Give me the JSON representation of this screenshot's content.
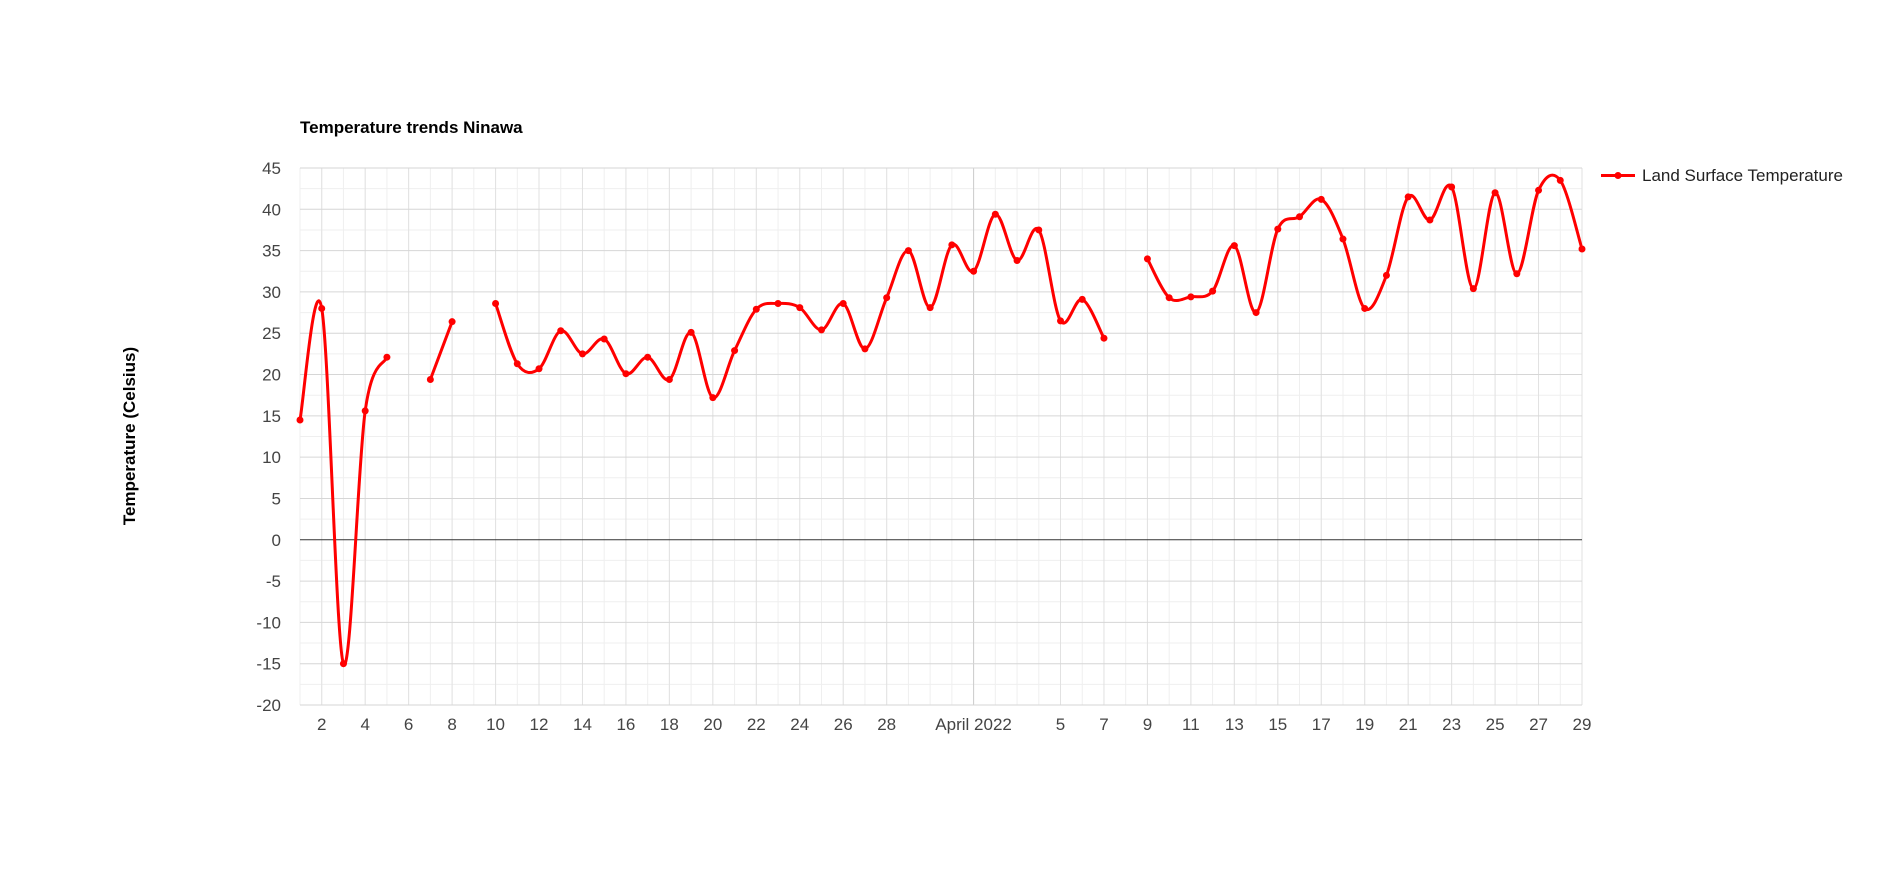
{
  "chart_data": {
    "type": "line",
    "title": "Temperature trends Ninawa",
    "xlabel": "",
    "ylabel": "Temperature (Celsius)",
    "ylim": [
      -20,
      45
    ],
    "yticks": [
      45,
      40,
      35,
      30,
      25,
      20,
      15,
      10,
      5,
      0,
      -5,
      -10,
      -15,
      -20
    ],
    "xlim": [
      "2022-03-01",
      "2022-04-29"
    ],
    "x_tick_labels": [
      {
        "date": "2022-03-02",
        "label": "2"
      },
      {
        "date": "2022-03-04",
        "label": "4"
      },
      {
        "date": "2022-03-06",
        "label": "6"
      },
      {
        "date": "2022-03-08",
        "label": "8"
      },
      {
        "date": "2022-03-10",
        "label": "10"
      },
      {
        "date": "2022-03-12",
        "label": "12"
      },
      {
        "date": "2022-03-14",
        "label": "14"
      },
      {
        "date": "2022-03-16",
        "label": "16"
      },
      {
        "date": "2022-03-18",
        "label": "18"
      },
      {
        "date": "2022-03-20",
        "label": "20"
      },
      {
        "date": "2022-03-22",
        "label": "22"
      },
      {
        "date": "2022-03-24",
        "label": "24"
      },
      {
        "date": "2022-03-26",
        "label": "26"
      },
      {
        "date": "2022-03-28",
        "label": "28"
      },
      {
        "date": "2022-04-01",
        "label": "April 2022"
      },
      {
        "date": "2022-04-05",
        "label": "5"
      },
      {
        "date": "2022-04-07",
        "label": "7"
      },
      {
        "date": "2022-04-09",
        "label": "9"
      },
      {
        "date": "2022-04-11",
        "label": "11"
      },
      {
        "date": "2022-04-13",
        "label": "13"
      },
      {
        "date": "2022-04-15",
        "label": "15"
      },
      {
        "date": "2022-04-17",
        "label": "17"
      },
      {
        "date": "2022-04-19",
        "label": "19"
      },
      {
        "date": "2022-04-21",
        "label": "21"
      },
      {
        "date": "2022-04-23",
        "label": "23"
      },
      {
        "date": "2022-04-25",
        "label": "25"
      },
      {
        "date": "2022-04-27",
        "label": "27"
      },
      {
        "date": "2022-04-29",
        "label": "29"
      }
    ],
    "grid": true,
    "legend_position": "top-right",
    "series": [
      {
        "name": "Land Surface Temperature",
        "color": "#ff0000",
        "points": [
          {
            "x": "2022-03-01",
            "y": 14.5
          },
          {
            "x": "2022-03-02",
            "y": 28.0
          },
          {
            "x": "2022-03-03",
            "y": -15.0
          },
          {
            "x": "2022-03-04",
            "y": 15.6
          },
          {
            "x": "2022-03-05",
            "y": 22.1
          },
          {
            "x": "2022-03-06",
            "y": null
          },
          {
            "x": "2022-03-07",
            "y": 19.4
          },
          {
            "x": "2022-03-08",
            "y": 26.4
          },
          {
            "x": "2022-03-09",
            "y": null
          },
          {
            "x": "2022-03-10",
            "y": 28.6
          },
          {
            "x": "2022-03-11",
            "y": 21.3
          },
          {
            "x": "2022-03-12",
            "y": 20.7
          },
          {
            "x": "2022-03-13",
            "y": 25.3
          },
          {
            "x": "2022-03-14",
            "y": 22.5
          },
          {
            "x": "2022-03-15",
            "y": 24.3
          },
          {
            "x": "2022-03-16",
            "y": 20.1
          },
          {
            "x": "2022-03-17",
            "y": 22.1
          },
          {
            "x": "2022-03-18",
            "y": 19.4
          },
          {
            "x": "2022-03-19",
            "y": 25.1
          },
          {
            "x": "2022-03-20",
            "y": 17.2
          },
          {
            "x": "2022-03-21",
            "y": 22.9
          },
          {
            "x": "2022-03-22",
            "y": 27.9
          },
          {
            "x": "2022-03-23",
            "y": 28.6
          },
          {
            "x": "2022-03-24",
            "y": 28.1
          },
          {
            "x": "2022-03-25",
            "y": 25.4
          },
          {
            "x": "2022-03-26",
            "y": 28.6
          },
          {
            "x": "2022-03-27",
            "y": 23.1
          },
          {
            "x": "2022-03-28",
            "y": 29.3
          },
          {
            "x": "2022-03-29",
            "y": 35.0
          },
          {
            "x": "2022-03-30",
            "y": 28.1
          },
          {
            "x": "2022-03-31",
            "y": 35.7
          },
          {
            "x": "2022-04-01",
            "y": 32.5
          },
          {
            "x": "2022-04-02",
            "y": 39.4
          },
          {
            "x": "2022-04-03",
            "y": 33.8
          },
          {
            "x": "2022-04-04",
            "y": 37.5
          },
          {
            "x": "2022-04-05",
            "y": 26.5
          },
          {
            "x": "2022-04-06",
            "y": 29.1
          },
          {
            "x": "2022-04-07",
            "y": 24.4
          },
          {
            "x": "2022-04-08",
            "y": null
          },
          {
            "x": "2022-04-09",
            "y": 34.0
          },
          {
            "x": "2022-04-10",
            "y": 29.3
          },
          {
            "x": "2022-04-11",
            "y": 29.4
          },
          {
            "x": "2022-04-12",
            "y": 30.1
          },
          {
            "x": "2022-04-13",
            "y": 35.6
          },
          {
            "x": "2022-04-14",
            "y": 27.5
          },
          {
            "x": "2022-04-15",
            "y": 37.6
          },
          {
            "x": "2022-04-16",
            "y": 39.1
          },
          {
            "x": "2022-04-17",
            "y": 41.2
          },
          {
            "x": "2022-04-18",
            "y": 36.4
          },
          {
            "x": "2022-04-19",
            "y": 28.0
          },
          {
            "x": "2022-04-20",
            "y": 32.0
          },
          {
            "x": "2022-04-21",
            "y": 41.5
          },
          {
            "x": "2022-04-22",
            "y": 38.7
          },
          {
            "x": "2022-04-23",
            "y": 42.7
          },
          {
            "x": "2022-04-24",
            "y": 30.4
          },
          {
            "x": "2022-04-25",
            "y": 42.0
          },
          {
            "x": "2022-04-26",
            "y": 32.2
          },
          {
            "x": "2022-04-27",
            "y": 42.3
          },
          {
            "x": "2022-04-28",
            "y": 43.5
          },
          {
            "x": "2022-04-29",
            "y": 35.2
          }
        ]
      }
    ]
  }
}
